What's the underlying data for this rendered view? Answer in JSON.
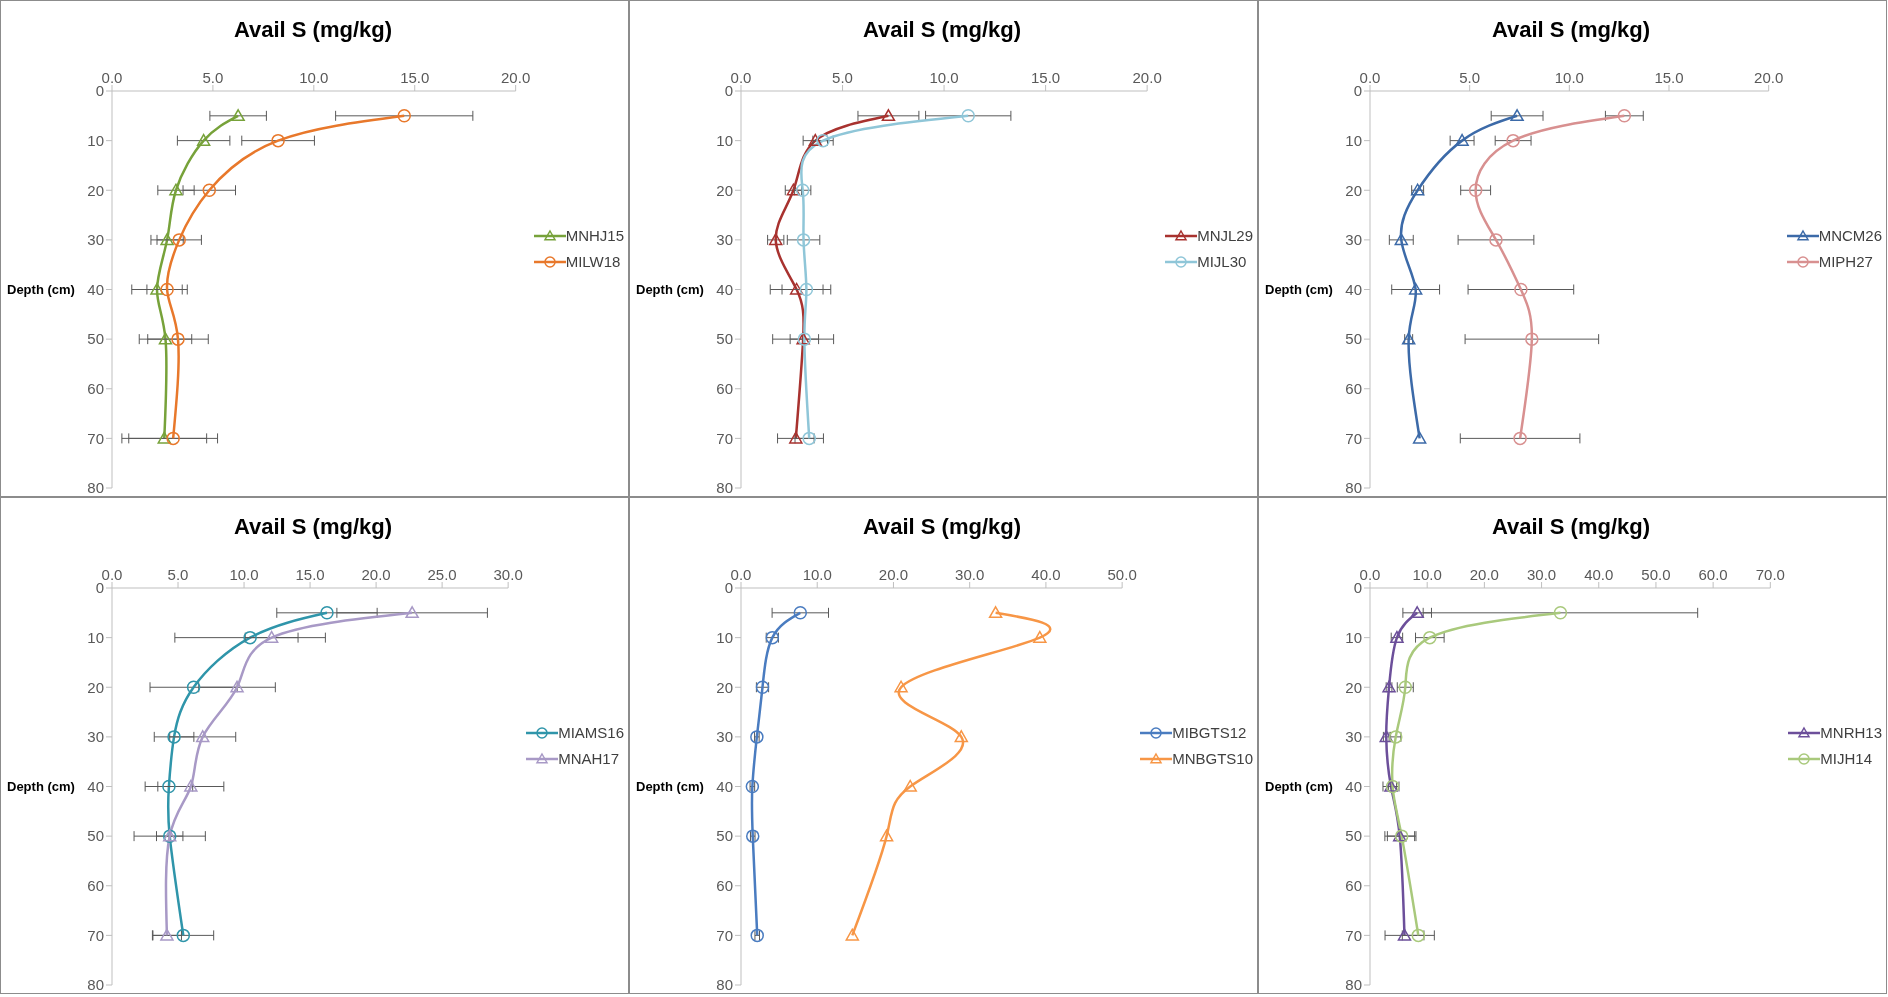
{
  "chart_data": [
    {
      "type": "line",
      "title": "Avail S (mg/kg)",
      "ylabel": "Depth (cm)",
      "xlim": [
        0,
        20
      ],
      "xticks": [
        {
          "value": 0,
          "label": "0.0"
        },
        {
          "value": 5,
          "label": "5.0"
        },
        {
          "value": 10,
          "label": "10.0"
        },
        {
          "value": 15,
          "label": "15.0"
        },
        {
          "value": 20,
          "label": "20.0"
        }
      ],
      "ylim": [
        80,
        0
      ],
      "yticks": [
        0,
        10,
        20,
        30,
        40,
        50,
        60,
        70,
        80
      ],
      "legend": "right",
      "series": [
        {
          "name": "MNHJ15",
          "color": "#77a23a",
          "marker": "triangle",
          "x": [
            6.25,
            4.54,
            3.17,
            2.73,
            2.23,
            2.65,
            2.59
          ],
          "values": [
            5,
            10,
            20,
            30,
            40,
            50,
            70
          ],
          "xerrors": [
            1.4,
            1.3,
            0.9,
            0.8,
            1.25,
            1.3,
            2.1
          ]
        },
        {
          "name": "MILW18",
          "color": "#e8782b",
          "marker": "circle",
          "x": [
            14.48,
            8.23,
            4.82,
            3.33,
            2.73,
            3.27,
            3.03
          ],
          "values": [
            5,
            10,
            20,
            30,
            40,
            50,
            70
          ],
          "xerrors": [
            3.4,
            1.8,
            1.3,
            1.1,
            1.0,
            1.5,
            2.2
          ]
        }
      ]
    },
    {
      "type": "line",
      "title": "Avail S (mg/kg)",
      "ylabel": "Depth (cm)",
      "xlim": [
        0,
        20
      ],
      "xticks": [
        {
          "value": 0,
          "label": "0.0"
        },
        {
          "value": 5,
          "label": "5.0"
        },
        {
          "value": 10,
          "label": "10.0"
        },
        {
          "value": 15,
          "label": "15.0"
        },
        {
          "value": 20,
          "label": "20.0"
        }
      ],
      "ylim": [
        80,
        0
      ],
      "yticks": [
        0,
        10,
        20,
        30,
        40,
        50,
        60,
        70,
        80
      ],
      "legend": "right",
      "series": [
        {
          "name": "MNJL29",
          "color": "#a8322f",
          "marker": "triangle",
          "x": [
            7.26,
            3.66,
            2.58,
            1.71,
            2.74,
            3.06,
            2.7
          ],
          "values": [
            5,
            10,
            20,
            30,
            40,
            50,
            70
          ],
          "xerrors": [
            1.5,
            0.6,
            0.4,
            0.4,
            1.3,
            1.5,
            0.9
          ]
        },
        {
          "name": "MIJL30",
          "color": "#8fc6d8",
          "marker": "circle",
          "x": [
            11.19,
            4.04,
            3.04,
            3.08,
            3.22,
            3.12,
            3.36
          ],
          "values": [
            5,
            10,
            20,
            30,
            40,
            50,
            70
          ],
          "xerrors": [
            2.1,
            0.5,
            0.4,
            0.8,
            1.2,
            0.7,
            0.7
          ]
        }
      ]
    },
    {
      "type": "line",
      "title": "Avail S (mg/kg)",
      "ylabel": "Depth (cm)",
      "xlim": [
        0,
        20
      ],
      "xticks": [
        {
          "value": 0,
          "label": "0.0"
        },
        {
          "value": 5,
          "label": "5.0"
        },
        {
          "value": 10,
          "label": "10.0"
        },
        {
          "value": 15,
          "label": "15.0"
        },
        {
          "value": 20,
          "label": "20.0"
        }
      ],
      "ylim": [
        80,
        0
      ],
      "yticks": [
        0,
        10,
        20,
        30,
        40,
        50,
        60,
        70,
        80
      ],
      "legend": "right",
      "series": [
        {
          "name": "MNCM26",
          "color": "#3c6aa8",
          "marker": "triangle",
          "x": [
            7.38,
            4.62,
            2.39,
            1.57,
            2.29,
            1.94,
            2.49
          ],
          "values": [
            5,
            10,
            20,
            30,
            40,
            50,
            70
          ],
          "xerrors": [
            1.3,
            0.6,
            0.3,
            0.6,
            1.2,
            0.2,
            null
          ]
        },
        {
          "name": "MIPH27",
          "color": "#d89090",
          "marker": "circle",
          "x": [
            12.76,
            7.18,
            5.3,
            6.32,
            7.57,
            8.12,
            7.53
          ],
          "values": [
            5,
            10,
            20,
            30,
            40,
            50,
            70
          ],
          "xerrors": [
            0.95,
            0.9,
            0.75,
            1.9,
            2.65,
            3.35,
            3.0
          ]
        }
      ]
    },
    {
      "type": "line",
      "title": "Avail S (mg/kg)",
      "ylabel": "Depth (cm)",
      "xlim": [
        0,
        30
      ],
      "xticks": [
        {
          "value": 0,
          "label": "0.0"
        },
        {
          "value": 5,
          "label": "5.0"
        },
        {
          "value": 10,
          "label": "10.0"
        },
        {
          "value": 15,
          "label": "15.0"
        },
        {
          "value": 20,
          "label": "20.0"
        },
        {
          "value": 25,
          "label": "25.0"
        },
        {
          "value": 30,
          "label": "30.0"
        }
      ],
      "ylim": [
        80,
        0
      ],
      "yticks": [
        0,
        10,
        20,
        30,
        40,
        50,
        60,
        70,
        80
      ],
      "legend": "right",
      "series": [
        {
          "name": "MIAMS16",
          "color": "#2f95aa",
          "marker": "circle",
          "x": [
            16.28,
            10.46,
            6.18,
            4.7,
            4.31,
            4.37,
            5.4
          ],
          "values": [
            5,
            10,
            20,
            30,
            40,
            50,
            70
          ],
          "xerrors": [
            3.8,
            5.7,
            3.3,
            1.5,
            1.8,
            2.7,
            2.3
          ]
        },
        {
          "name": "MNAH17",
          "color": "#a899c6",
          "marker": "triangle",
          "x": [
            22.73,
            12.09,
            9.47,
            6.87,
            5.97,
            4.37,
            4.16
          ],
          "values": [
            5,
            10,
            20,
            30,
            40,
            50,
            70
          ],
          "xerrors": [
            5.7,
            2.0,
            2.9,
            2.5,
            2.5,
            1.0,
            1.1
          ]
        }
      ]
    },
    {
      "type": "line",
      "title": "Avail S (mg/kg)",
      "ylabel": "Depth (cm)",
      "xlim": [
        0,
        50
      ],
      "xticks": [
        {
          "value": 0,
          "label": "0.0"
        },
        {
          "value": 10,
          "label": "10.0"
        },
        {
          "value": 20,
          "label": "20.0"
        },
        {
          "value": 30,
          "label": "30.0"
        },
        {
          "value": 40,
          "label": "40.0"
        },
        {
          "value": 50,
          "label": "50.0"
        }
      ],
      "ylim": [
        80,
        0
      ],
      "yticks": [
        0,
        10,
        20,
        30,
        40,
        50,
        60,
        70,
        80
      ],
      "legend": "right",
      "series": [
        {
          "name": "MIBGTS12",
          "color": "#4a7cc0",
          "marker": "circle",
          "x": [
            7.78,
            4.11,
            2.82,
            2.08,
            1.49,
            1.54,
            2.13
          ],
          "values": [
            5,
            10,
            20,
            30,
            40,
            50,
            70
          ],
          "xerrors": [
            3.7,
            0.8,
            0.8,
            0.3,
            0.3,
            0.3,
            0.3
          ]
        },
        {
          "name": "MNBGTS10",
          "color": "#f79646",
          "marker": "triangle",
          "x": [
            33.4,
            39.2,
            21.0,
            28.9,
            22.2,
            19.1,
            14.6
          ],
          "values": [
            5,
            10,
            20,
            30,
            40,
            50,
            70
          ]
        }
      ]
    },
    {
      "type": "line",
      "title": "Avail S (mg/kg)",
      "ylabel": "Depth (cm)",
      "xlim": [
        0,
        70
      ],
      "xticks": [
        {
          "value": 0,
          "label": "0.0"
        },
        {
          "value": 10,
          "label": "10.0"
        },
        {
          "value": 20,
          "label": "20.0"
        },
        {
          "value": 30,
          "label": "30.0"
        },
        {
          "value": 40,
          "label": "40.0"
        },
        {
          "value": 50,
          "label": "50.0"
        },
        {
          "value": 60,
          "label": "60.0"
        },
        {
          "value": 70,
          "label": "70.0"
        }
      ],
      "ylim": [
        80,
        0
      ],
      "yticks": [
        0,
        10,
        20,
        30,
        40,
        50,
        60,
        70,
        80
      ],
      "legend": "right",
      "series": [
        {
          "name": "MNRH13",
          "color": "#6c4f9a",
          "marker": "triangle",
          "x": [
            8.25,
            4.71,
            3.33,
            2.84,
            3.67,
            5.2,
            6.03
          ],
          "values": [
            5,
            10,
            20,
            30,
            40,
            50,
            70
          ],
          "xerrors": [
            2.5,
            1.0,
            0.5,
            0.5,
            1.4,
            2.6,
            3.4
          ]
        },
        {
          "name": "MIJH14",
          "color": "#a9c97c",
          "marker": "circle",
          "x": [
            33.3,
            10.46,
            6.17,
            4.5,
            3.95,
            5.54,
            8.45
          ],
          "values": [
            5,
            10,
            20,
            30,
            40,
            50,
            70
          ],
          "xerrors": [
            24,
            2.5,
            1.4,
            0.9,
            0.7,
            2.5,
            2.8
          ]
        }
      ]
    }
  ]
}
